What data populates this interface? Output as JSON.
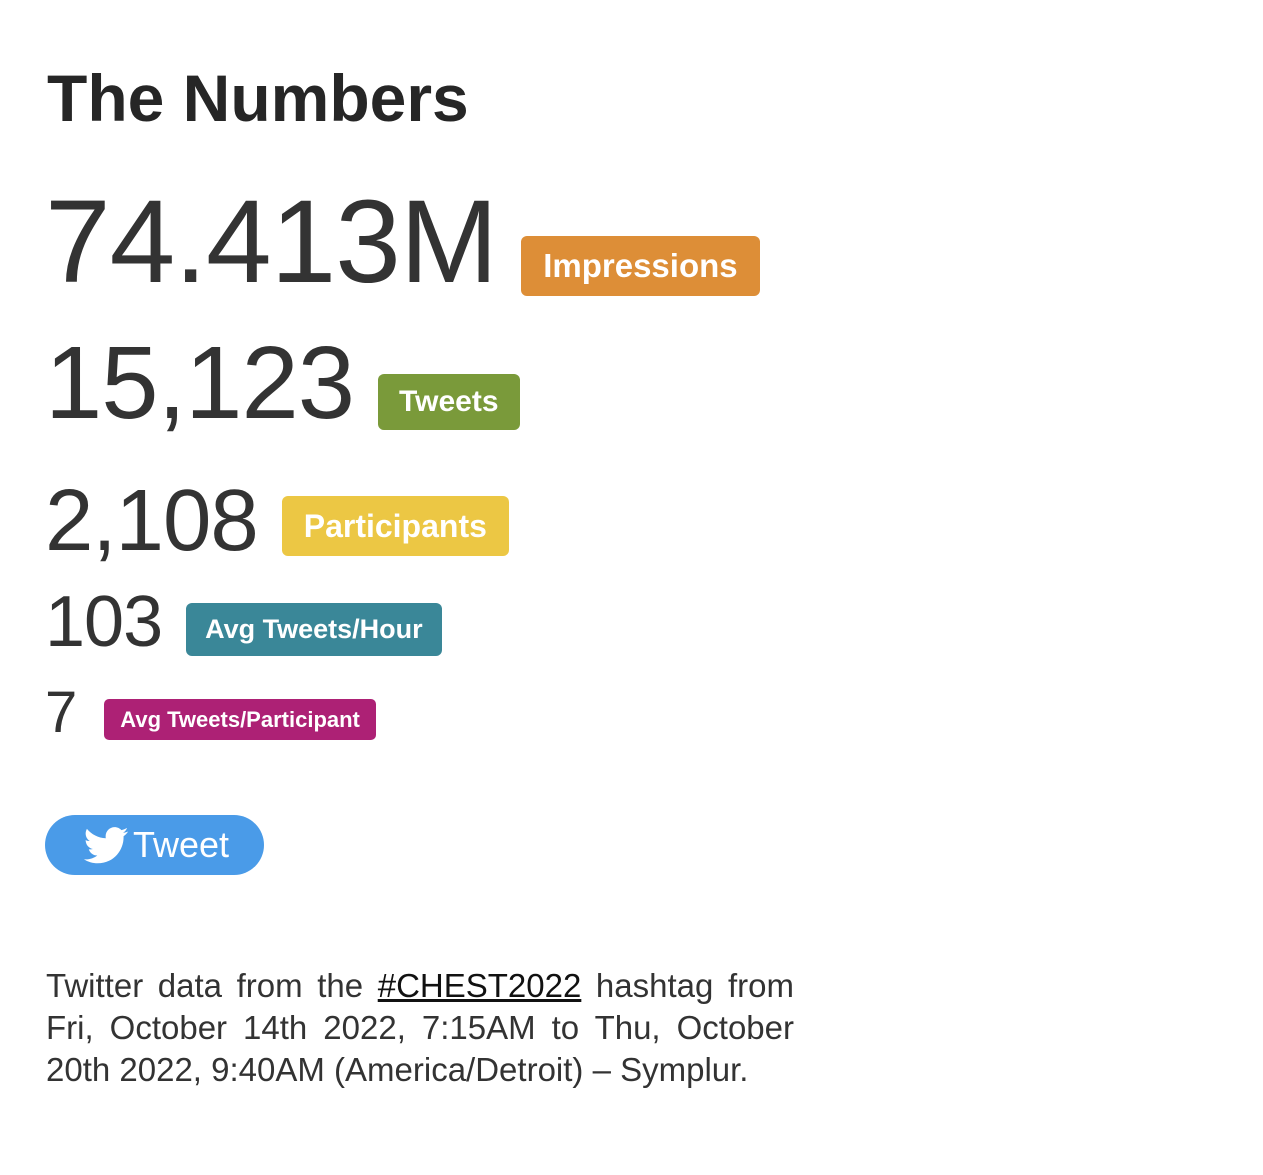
{
  "title": "The Numbers",
  "stats": [
    {
      "value": "74.413M",
      "label": "Impressions",
      "color": "#dd8e37"
    },
    {
      "value": "15,123",
      "label": "Tweets",
      "color": "#7a9a3a"
    },
    {
      "value": "2,108",
      "label": "Participants",
      "color": "#ecc744"
    },
    {
      "value": "103",
      "label": "Avg Tweets/Hour",
      "color": "#3a8798"
    },
    {
      "value": "7",
      "label": "Avg Tweets/Participant",
      "color": "#ad2175"
    }
  ],
  "tweet_button": {
    "label": "Tweet",
    "icon": "twitter-bird-icon",
    "color": "#4a9be8"
  },
  "footer": {
    "prefix": "Twitter data from the ",
    "hashtag": "#CHEST2022",
    "suffix": " hashtag from Fri, October 14th 2022, 7:15AM to Thu, October 20th 2022, 9:40AM (America/Detroit) – Symplur."
  }
}
